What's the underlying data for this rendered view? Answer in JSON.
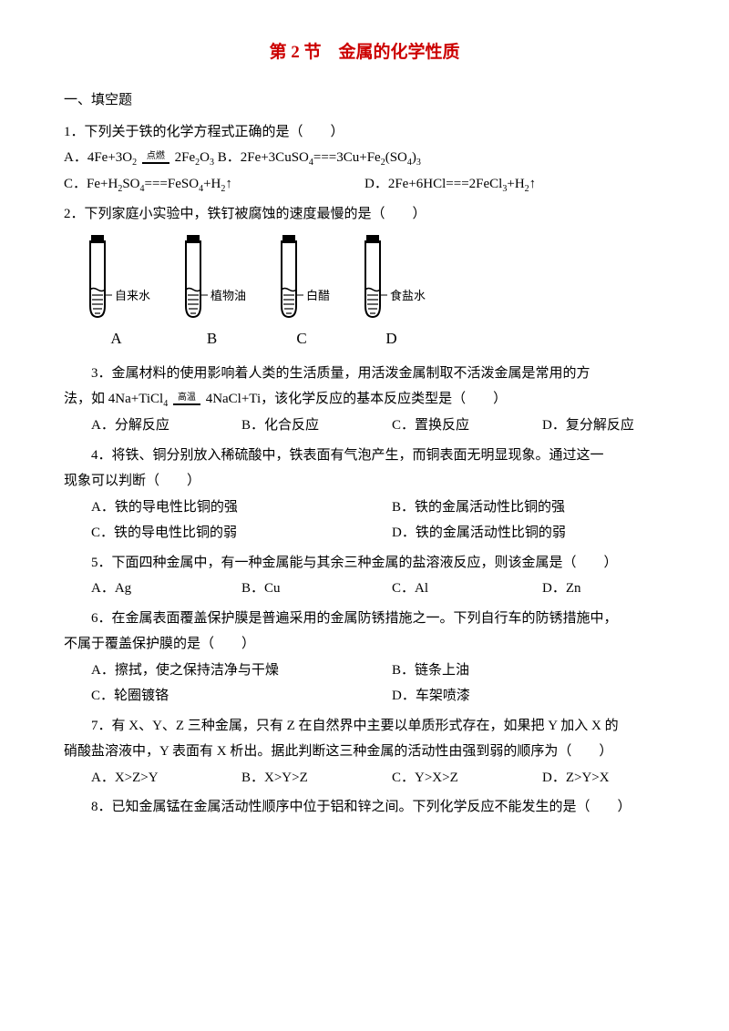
{
  "title_color": "#cc0000",
  "title": "第 2 节　金属的化学性质",
  "section1": "一、填空题",
  "q1": {
    "stem": "1．下列关于铁的化学方程式正确的是（　　）",
    "A_pre": "A．4Fe+3O",
    "A_sub1": "2",
    "A_cond": "点燃",
    "A_mid": "2Fe",
    "A_sub2": "2",
    "A_mid2": "O",
    "A_sub3": "3",
    "B_pre": " B．2Fe+3CuSO",
    "B_sub1": "4",
    "B_mid": "===3Cu+Fe",
    "B_sub2": "2",
    "B_mid2": "(SO",
    "B_sub3": "4",
    "B_mid3": ")",
    "B_sub4": "3",
    "C_pre": "C．Fe+H",
    "C_sub1": "2",
    "C_mid": "SO",
    "C_sub2": "4",
    "C_mid2": "===FeSO",
    "C_sub3": "4",
    "C_mid3": "+H",
    "C_sub4": "2",
    "C_tail": "↑",
    "D_pre": "D．2Fe+6HCl===2FeCl",
    "D_sub1": "3",
    "D_mid": "+H",
    "D_sub2": "2",
    "D_tail": "↑"
  },
  "q2": {
    "stem": "2．下列家庭小实验中，铁钉被腐蚀的速度最慢的是（　　）",
    "tubes": [
      {
        "letter": "A",
        "label": "自来水"
      },
      {
        "letter": "B",
        "label": "植物油"
      },
      {
        "letter": "C",
        "label": "白醋"
      },
      {
        "letter": "D",
        "label": "食盐水"
      }
    ]
  },
  "q3": {
    "line1": "3．金属材料的使用影响着人类的生活质量，用活泼金属制取不活泼金属是常用的方",
    "line2_pre": "法，如 4Na+TiCl",
    "line2_sub1": "4",
    "line2_cond": "高温",
    "line2_post": "4NaCl+Ti，该化学反应的基本反应类型是（　　）",
    "opts": [
      "A．分解反应",
      "B．化合反应",
      "C．置换反应",
      "D．复分解反应"
    ]
  },
  "q4": {
    "line1": "4．将铁、铜分别放入稀硫酸中，铁表面有气泡产生，而铜表面无明显现象。通过这一",
    "line2": "现象可以判断（　　）",
    "opts": [
      "A．铁的导电性比铜的强",
      "B．铁的金属活动性比铜的强",
      "C．铁的导电性比铜的弱",
      "D．铁的金属活动性比铜的弱"
    ]
  },
  "q5": {
    "stem": "5．下面四种金属中，有一种金属能与其余三种金属的盐溶液反应，则该金属是（　　）",
    "opts": [
      "A．Ag",
      "B．Cu",
      "C．Al",
      "D．Zn"
    ]
  },
  "q6": {
    "line1": "6．在金属表面覆盖保护膜是普遍采用的金属防锈措施之一。下列自行车的防锈措施中，",
    "line2": "不属于覆盖保护膜的是（　　）",
    "opts": [
      "A．擦拭，使之保持洁净与干燥",
      "B．链条上油",
      "C．轮圈镀铬",
      "D．车架喷漆"
    ]
  },
  "q7": {
    "line1": "7．有 X、Y、Z 三种金属，只有 Z 在自然界中主要以单质形式存在，如果把 Y 加入 X 的",
    "line2": "硝酸盐溶液中，Y 表面有 X 析出。据此判断这三种金属的活动性由强到弱的顺序为（　　）",
    "opts": [
      "A．X>Z>Y",
      "B．X>Y>Z",
      "C．Y>X>Z",
      "D．Z>Y>X"
    ]
  },
  "q8": {
    "stem": "8．已知金属锰在金属活动性顺序中位于铝和锌之间。下列化学反应不能发生的是（　　）"
  },
  "tube_svg": {
    "stroke": "#000000",
    "stopper_fill": "#000000",
    "liquid_fill_pattern": "#000000"
  }
}
